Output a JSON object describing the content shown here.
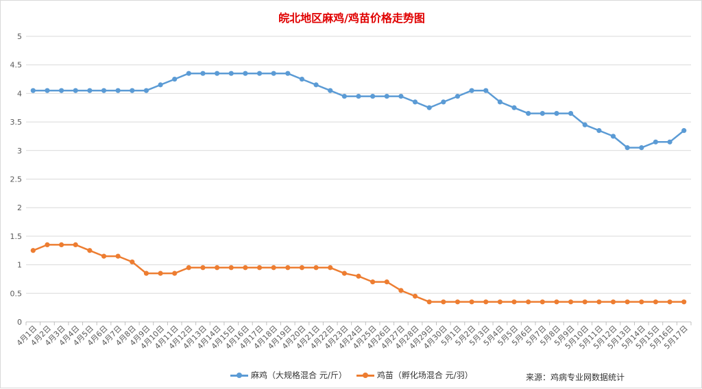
{
  "chart_data": {
    "type": "line",
    "title": "皖北地区麻鸡/鸡苗价格走势图",
    "categories": [
      "4月1日",
      "4月2日",
      "4月3日",
      "4月4日",
      "4月5日",
      "4月6日",
      "4月7日",
      "4月8日",
      "4月9日",
      "4月10日",
      "4月11日",
      "4月12日",
      "4月13日",
      "4月14日",
      "4月15日",
      "4月16日",
      "4月17日",
      "4月18日",
      "4月19日",
      "4月20日",
      "4月21日",
      "4月22日",
      "4月23日",
      "4月24日",
      "4月25日",
      "4月26日",
      "4月27日",
      "4月28日",
      "4月29日",
      "4月30日",
      "5月1日",
      "5月2日",
      "5月3日",
      "5月4日",
      "5月5日",
      "5月6日",
      "5月7日",
      "5月8日",
      "5月9日",
      "5月10日",
      "5月11日",
      "5月12日",
      "5月13日",
      "5月14日",
      "5月15日",
      "5月16日",
      "5月17日"
    ],
    "series": [
      {
        "name": "麻鸡（大规格混合 元/斤）",
        "color": "#5b9bd5",
        "values": [
          4.05,
          4.05,
          4.05,
          4.05,
          4.05,
          4.05,
          4.05,
          4.05,
          4.05,
          4.15,
          4.25,
          4.35,
          4.35,
          4.35,
          4.35,
          4.35,
          4.35,
          4.35,
          4.35,
          4.25,
          4.15,
          4.05,
          3.95,
          3.95,
          3.95,
          3.95,
          3.95,
          3.85,
          3.75,
          3.85,
          3.95,
          4.05,
          4.05,
          3.85,
          3.75,
          3.65,
          3.65,
          3.65,
          3.65,
          3.45,
          3.35,
          3.25,
          3.05,
          3.05,
          3.15,
          3.15,
          3.35
        ]
      },
      {
        "name": "鸡苗（孵化场混合 元/羽）",
        "color": "#ed7d31",
        "values": [
          1.25,
          1.35,
          1.35,
          1.35,
          1.25,
          1.15,
          1.15,
          1.05,
          0.85,
          0.85,
          0.85,
          0.95,
          0.95,
          0.95,
          0.95,
          0.95,
          0.95,
          0.95,
          0.95,
          0.95,
          0.95,
          0.95,
          0.85,
          0.8,
          0.7,
          0.7,
          0.55,
          0.45,
          0.35,
          0.35,
          0.35,
          0.35,
          0.35,
          0.35,
          0.35,
          0.35,
          0.35,
          0.35,
          0.35,
          0.35,
          0.35,
          0.35,
          0.35,
          0.35,
          0.35,
          0.35,
          0.35
        ]
      }
    ],
    "ylim": [
      0,
      5
    ],
    "yticks": [
      "0",
      "0.5",
      "1",
      "1.5",
      "2",
      "2.5",
      "3",
      "3.5",
      "4",
      "4.5",
      "5"
    ],
    "grid": true,
    "legend": "bottom",
    "source_note": "来源：鸡病专业网数据统计"
  }
}
